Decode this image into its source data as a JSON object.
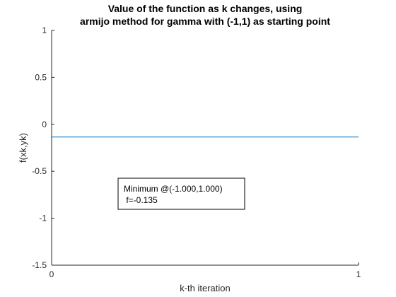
{
  "chart_data": {
    "type": "line",
    "title": [
      "Value of the function as k changes, using",
      "armijo method for gamma with (-1,1) as starting point"
    ],
    "xlabel": "k-th iteration",
    "ylabel": "f(xk,yk)",
    "xlim": [
      0,
      1
    ],
    "ylim": [
      -1.5,
      1
    ],
    "xticks": [
      0,
      1
    ],
    "yticks": [
      -1.5,
      -1,
      -0.5,
      0,
      0.5,
      1
    ],
    "yticklabels": [
      "-1.5",
      "-1",
      "-0.5",
      "0",
      "0.5",
      "1"
    ],
    "xticklabels": [
      "0",
      "1"
    ],
    "grid": false,
    "series": [
      {
        "x": [
          0,
          1
        ],
        "y": [
          -0.135,
          -0.135
        ],
        "color": "#0072bd"
      }
    ],
    "annotation": {
      "lines": [
        "Minimum @(-1.000,1.000)",
        " f=-0.135"
      ]
    }
  }
}
